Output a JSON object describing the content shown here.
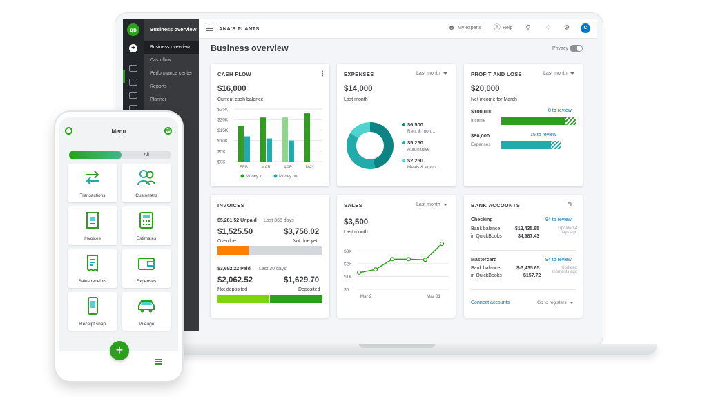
{
  "sidebar": {
    "title": "Business overview",
    "items": [
      {
        "label": "Business overview",
        "active": true
      },
      {
        "label": "Cash flow"
      },
      {
        "label": "Performance center"
      },
      {
        "label": "Reports"
      },
      {
        "label": "Planner"
      }
    ]
  },
  "header": {
    "company": "ANA'S PLANTS",
    "my_experts": "My experts",
    "help": "Help",
    "avatar_initial": "C"
  },
  "page": {
    "title": "Business overview",
    "privacy_label": "Privacy"
  },
  "cash_flow": {
    "title": "CASH FLOW",
    "amount": "$16,000",
    "caption": "Current cash balance",
    "y_ticks": [
      "$25K",
      "$20K",
      "$15K",
      "$10K",
      "$5K",
      "$0K"
    ],
    "legend_in": "Money in",
    "legend_out": "Money out"
  },
  "expenses": {
    "title": "EXPENSES",
    "period": "Last month",
    "amount": "$14,000",
    "caption": "Last month",
    "items": [
      {
        "amount": "$6,500",
        "label": "Rent & mort...",
        "color": "#0d8484"
      },
      {
        "amount": "$5,250",
        "label": "Automotive",
        "color": "#21abab"
      },
      {
        "amount": "$2,250",
        "label": "Meals & entert...",
        "color": "#4fd3cf"
      }
    ]
  },
  "profit_loss": {
    "title": "PROFIT AND LOSS",
    "period": "Last month",
    "amount": "$20,000",
    "caption": "Net income for March",
    "income_amount": "$100,000",
    "income_label": "Income",
    "income_review": "8 to review",
    "income_reviewed_fraction": 0.85,
    "expenses_amount": "$80,000",
    "expenses_label": "Expenses",
    "expenses_review": "15 to review",
    "expenses_reviewed_fraction": 0.84
  },
  "invoices": {
    "title": "INVOICES",
    "unpaid_amount": "$5,281.52 Unpaid",
    "unpaid_period": "Last 365 days",
    "overdue_amount": "$1,525.50",
    "overdue_label": "Overdue",
    "not_due_amount": "$3,756.02",
    "not_due_label": "Not due yet",
    "paid_amount": "$3,692.22 Paid",
    "paid_period": "Last 30 days",
    "not_deposited_amount": "$2,062.52",
    "not_deposited_label": "Not deposited",
    "deposited_amount": "$1,629.70",
    "deposited_label": "Deposited"
  },
  "sales": {
    "title": "SALES",
    "period": "Last month",
    "amount": "$3,500",
    "caption": "Last month",
    "y_ticks": [
      "$3K",
      "$2K",
      "$1K",
      "$0"
    ],
    "x_start": "Mar 2",
    "x_end": "Mar 31"
  },
  "bank_accounts": {
    "title": "BANK ACCOUNTS",
    "accounts": [
      {
        "name": "Checking",
        "review": "94 to review",
        "bank_label_1": "Bank balance",
        "bank_value": "$12,435.65",
        "qb_label": "in QuickBooks",
        "qb_value": "$4,987.43",
        "updated": "Updated 4 days ago"
      },
      {
        "name": "Mastercard",
        "review": "94 to review",
        "bank_label_1": "Bank balance",
        "bank_value": "$-3,435.65",
        "qb_label": "in QuickBooks",
        "qb_value": "$157.72",
        "updated": "Updated moments ago"
      }
    ],
    "connect": "Connect accounts",
    "registers": "Go to registers"
  },
  "chart_data": [
    {
      "type": "bar",
      "categories": [
        "FEB",
        "MAR",
        "APR",
        "MAY"
      ],
      "series": [
        {
          "name": "Money in",
          "values": [
            17,
            21,
            21,
            23
          ]
        },
        {
          "name": "Money out",
          "values": [
            12,
            11,
            10,
            null
          ]
        }
      ],
      "ylim": [
        0,
        25
      ],
      "y_ticks": [
        "$25K",
        "$20K",
        "$15K",
        "$10K",
        "$5K",
        "$0K"
      ],
      "legend": "bottom"
    },
    {
      "type": "pie",
      "categories": [
        "Rent & mort...",
        "Automotive",
        "Meals & entert..."
      ],
      "values": [
        6500,
        5250,
        2250
      ]
    },
    {
      "type": "line",
      "x": [
        "Mar 2",
        "",
        "",
        "",
        "",
        "Mar 31"
      ],
      "values": [
        1300,
        1550,
        2350,
        2350,
        2300,
        3550
      ],
      "ylim": [
        0,
        3500
      ],
      "y_ticks": [
        "$3K",
        "$2K",
        "$1K",
        "$0"
      ]
    }
  ],
  "phone": {
    "title": "Menu",
    "segment_all": "All",
    "tiles": [
      {
        "label": "Transactions",
        "icon": "arrows-icon"
      },
      {
        "label": "Customers",
        "icon": "people-icon"
      },
      {
        "label": "Invoices",
        "icon": "invoice-icon"
      },
      {
        "label": "Estimates",
        "icon": "calculator-icon"
      },
      {
        "label": "Sales receipts",
        "icon": "receipt-icon"
      },
      {
        "label": "Expenses",
        "icon": "wallet-icon"
      },
      {
        "label": "Receipt snap",
        "icon": "phone-receipt-icon"
      },
      {
        "label": "Mileage",
        "icon": "car-icon"
      }
    ],
    "fab": "+"
  }
}
